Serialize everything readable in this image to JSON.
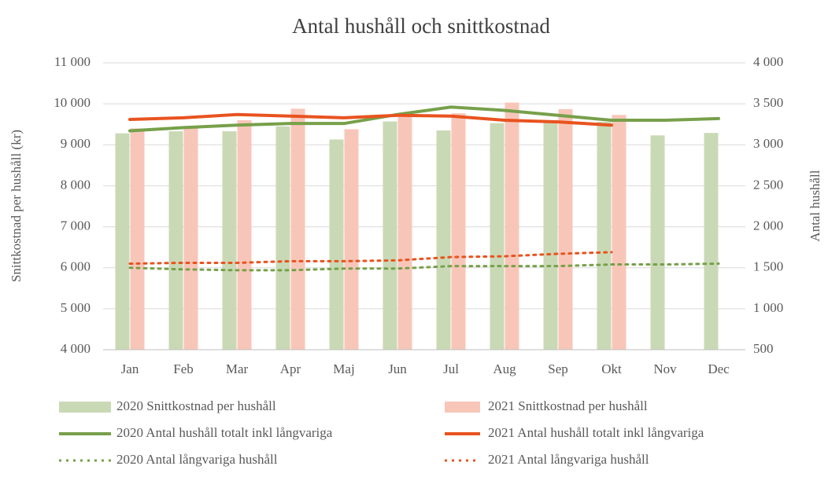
{
  "chart_data": {
    "type": "bar",
    "title": "Antal hushåll  och snittkostnad",
    "y_label": "Snittkostnad per hushåll (kr)",
    "y2_label": "Antal hushåll",
    "categories": [
      "Jan",
      "Feb",
      "Mar",
      "Apr",
      "Maj",
      "Jun",
      "Jul",
      "Aug",
      "Sep",
      "Okt",
      "Nov",
      "Dec"
    ],
    "ylim": [
      4000,
      11000
    ],
    "yticks": [
      {
        "value": 4000,
        "label": "4 000"
      },
      {
        "value": 5000,
        "label": "5 000"
      },
      {
        "value": 6000,
        "label": "6 000"
      },
      {
        "value": 7000,
        "label": "7 000"
      },
      {
        "value": 8000,
        "label": "8 000"
      },
      {
        "value": 9000,
        "label": "9 000"
      },
      {
        "value": 10000,
        "label": "10 000"
      },
      {
        "value": 11000,
        "label": "11 000"
      }
    ],
    "y2lim": [
      500,
      4000
    ],
    "y2ticks": [
      500,
      {
        "value": 1000,
        "label": "1 000"
      },
      {
        "value": 1500,
        "label": "1 500"
      },
      {
        "value": 2000,
        "label": "2 000"
      },
      {
        "value": 2500,
        "label": "2 500"
      },
      {
        "value": 3000,
        "label": "3 000"
      },
      {
        "value": 3500,
        "label": "3 500"
      },
      {
        "value": 4000,
        "label": "4 000"
      }
    ],
    "grid": true,
    "legend": "bottom",
    "series": [
      {
        "name": "2020 Snittkostnad per hushåll",
        "type": "bar",
        "color": "#c9d9b5",
        "values": [
          9280,
          9330,
          9330,
          9450,
          9130,
          9570,
          9350,
          9530,
          9600,
          9560,
          9230,
          9290
        ]
      },
      {
        "name": "2021 Snittkostnad per hushåll",
        "type": "bar",
        "color": "#f8c6b8",
        "values": [
          9400,
          9460,
          9600,
          9880,
          9380,
          9780,
          9770,
          10030,
          9870,
          9730,
          null,
          null
        ]
      },
      {
        "name": "2020 Antal hushåll totalt inkl långvariga",
        "type": "line",
        "axis": "y2",
        "color": "#77a04a",
        "style": "solid",
        "values": [
          3170,
          3210,
          3240,
          3260,
          3260,
          3370,
          3460,
          3420,
          3360,
          3300,
          3300,
          3320
        ]
      },
      {
        "name": "2021 Antal hushåll totalt inkl långvariga",
        "type": "line",
        "axis": "y2",
        "color": "#e8531f",
        "style": "solid",
        "values": [
          3310,
          3330,
          3370,
          3350,
          3330,
          3360,
          3350,
          3300,
          3280,
          3240,
          null,
          null
        ]
      },
      {
        "name": "2020 Antal långvariga hushåll",
        "type": "line",
        "axis": "y2",
        "color": "#77a04a",
        "style": "dotted",
        "values": [
          1500,
          1480,
          1470,
          1470,
          1490,
          1490,
          1520,
          1520,
          1520,
          1540,
          1540,
          1550
        ]
      },
      {
        "name": "2021 Antal långvariga hushåll",
        "type": "line",
        "axis": "y2",
        "color": "#e8531f",
        "style": "dotted",
        "values": [
          1550,
          1560,
          1560,
          1580,
          1580,
          1590,
          1630,
          1640,
          1670,
          1690,
          null,
          null
        ]
      }
    ]
  }
}
